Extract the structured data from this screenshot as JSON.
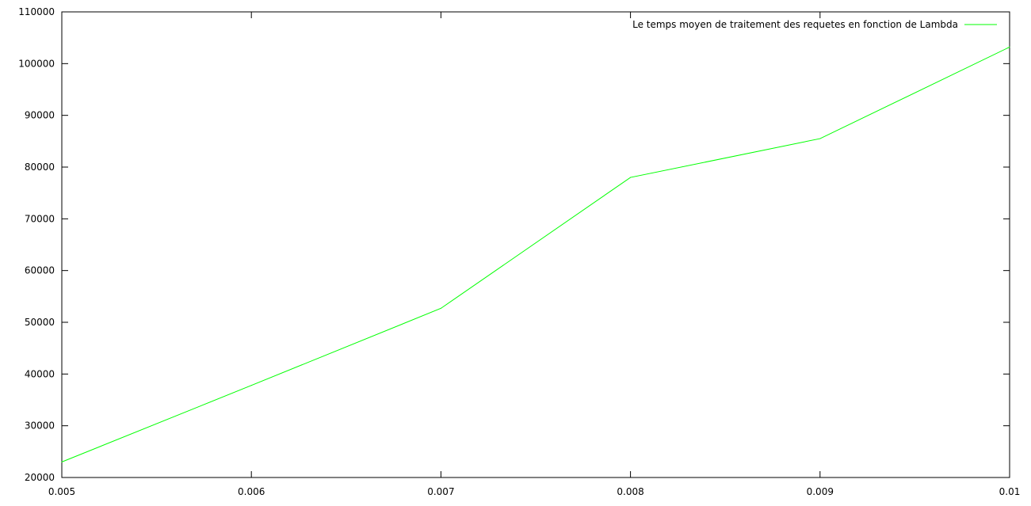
{
  "chart_data": {
    "type": "line",
    "x": [
      0.005,
      0.006,
      0.007,
      0.008,
      0.009,
      0.01
    ],
    "series": [
      {
        "name": "Le temps moyen de traitement des requetes en fonction de Lambda",
        "values": [
          23000,
          37800,
          52700,
          78000,
          85500,
          103200
        ],
        "color": "#00ff00"
      }
    ],
    "xlim": [
      0.005,
      0.01
    ],
    "ylim": [
      20000,
      110000
    ],
    "x_ticks": [
      "0.005",
      "0.006",
      "0.007",
      "0.008",
      "0.009",
      "0.01"
    ],
    "y_ticks": [
      "20000",
      "30000",
      "40000",
      "50000",
      "60000",
      "70000",
      "80000",
      "90000",
      "100000",
      "110000"
    ],
    "grid": false,
    "legend": "top-right",
    "title": "",
    "xlabel": "",
    "ylabel": ""
  }
}
